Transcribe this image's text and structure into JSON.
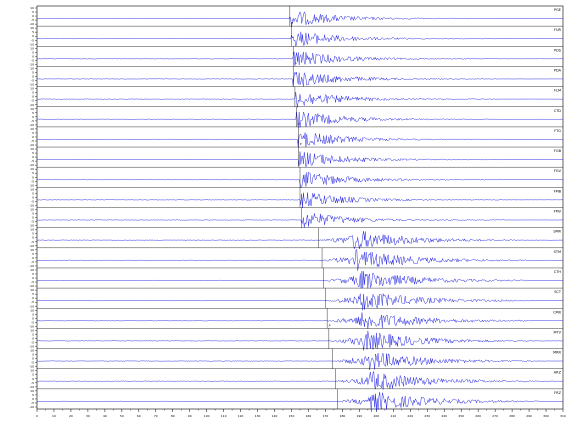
{
  "chart_data": {
    "type": "line",
    "title": "",
    "xlabel": "",
    "ylabel": "",
    "x_ticks": [
      "0",
      "10",
      "20",
      "30",
      "40",
      "50",
      "60",
      "70",
      "80",
      "90",
      "100",
      "110",
      "120",
      "130",
      "140",
      "150",
      "160",
      "170",
      "180",
      "190",
      "200",
      "210",
      "220",
      "230",
      "240",
      "250",
      "260",
      "270",
      "280",
      "290",
      "300",
      "310"
    ],
    "x_range": [
      0,
      310
    ],
    "y_ticks_per_trace": [
      "10",
      "5",
      "0",
      "-5",
      "-10"
    ],
    "traces": [
      {
        "name": "PGE",
        "p_pick": 149,
        "label": "P"
      },
      {
        "name": "FUR",
        "p_pick": 150,
        "label": ""
      },
      {
        "name": "PDS",
        "p_pick": 151,
        "label": "P"
      },
      {
        "name": "PDA",
        "p_pick": 151,
        "label": ""
      },
      {
        "name": "FLM",
        "p_pick": 152,
        "label": ""
      },
      {
        "name": "CTD",
        "p_pick": 153,
        "label": "P"
      },
      {
        "name": "FTG",
        "p_pick": 154,
        "label": "P"
      },
      {
        "name": "FGB",
        "p_pick": 154,
        "label": ""
      },
      {
        "name": "FGV",
        "p_pick": 155,
        "label": ""
      },
      {
        "name": "FMB",
        "p_pick": 155,
        "label": ""
      },
      {
        "name": "FMV",
        "p_pick": 156,
        "label": ""
      },
      {
        "name": "SMR",
        "p_pick": 166,
        "label": ""
      },
      {
        "name": "STM",
        "p_pick": 168,
        "label": ""
      },
      {
        "name": "CTH",
        "p_pick": 169,
        "label": ""
      },
      {
        "name": "SCT",
        "p_pick": 170,
        "label": ""
      },
      {
        "name": "CMR",
        "p_pick": 171,
        "label": "P"
      },
      {
        "name": "MTV",
        "p_pick": 172,
        "label": ""
      },
      {
        "name": "MRR",
        "p_pick": 174,
        "label": ""
      },
      {
        "name": "ARZ",
        "p_pick": 176,
        "label": ""
      },
      {
        "name": "FRZ",
        "p_pick": 177,
        "label": ""
      }
    ]
  }
}
